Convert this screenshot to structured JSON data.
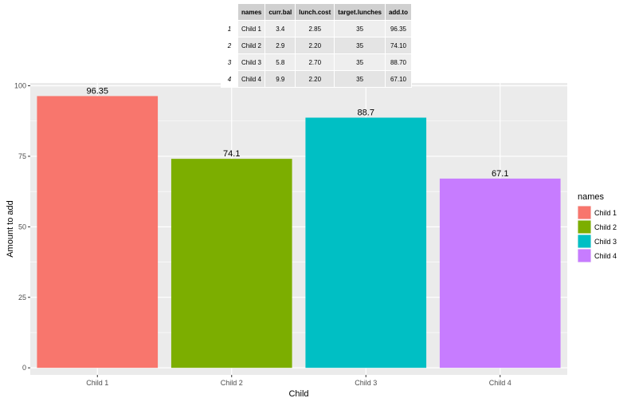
{
  "table": {
    "columns": [
      "names",
      "curr.bal",
      "lunch.cost",
      "target.lunches",
      "add.to"
    ],
    "rows": [
      {
        "index": "1",
        "cells": [
          "Child 1",
          "3.4",
          "2.85",
          "35",
          "96.35"
        ]
      },
      {
        "index": "2",
        "cells": [
          "Child 2",
          "2.9",
          "2.20",
          "35",
          "74.10"
        ]
      },
      {
        "index": "3",
        "cells": [
          "Child 3",
          "5.8",
          "2.70",
          "35",
          "88.70"
        ]
      },
      {
        "index": "4",
        "cells": [
          "Child 4",
          "9.9",
          "2.20",
          "35",
          "67.10"
        ]
      }
    ]
  },
  "chart_data": {
    "type": "bar",
    "categories": [
      "Child 1",
      "Child 2",
      "Child 3",
      "Child 4"
    ],
    "values": [
      96.35,
      74.1,
      88.7,
      67.1
    ],
    "value_labels": [
      "96.35",
      "74.1",
      "88.7",
      "67.1"
    ],
    "colors": [
      "#F8766D",
      "#7CAE00",
      "#00BFC4",
      "#C77CFF"
    ],
    "title": "",
    "xlabel": "Child",
    "ylabel": "Amount to add",
    "ylim": [
      -2.5,
      101
    ],
    "yticks": [
      0,
      25,
      50,
      75,
      100
    ],
    "grid": true,
    "panel_background": "#EBEBEB",
    "legend": {
      "title": "names",
      "placement": "right",
      "entries": [
        "Child 1",
        "Child 2",
        "Child 3",
        "Child 4"
      ]
    }
  }
}
